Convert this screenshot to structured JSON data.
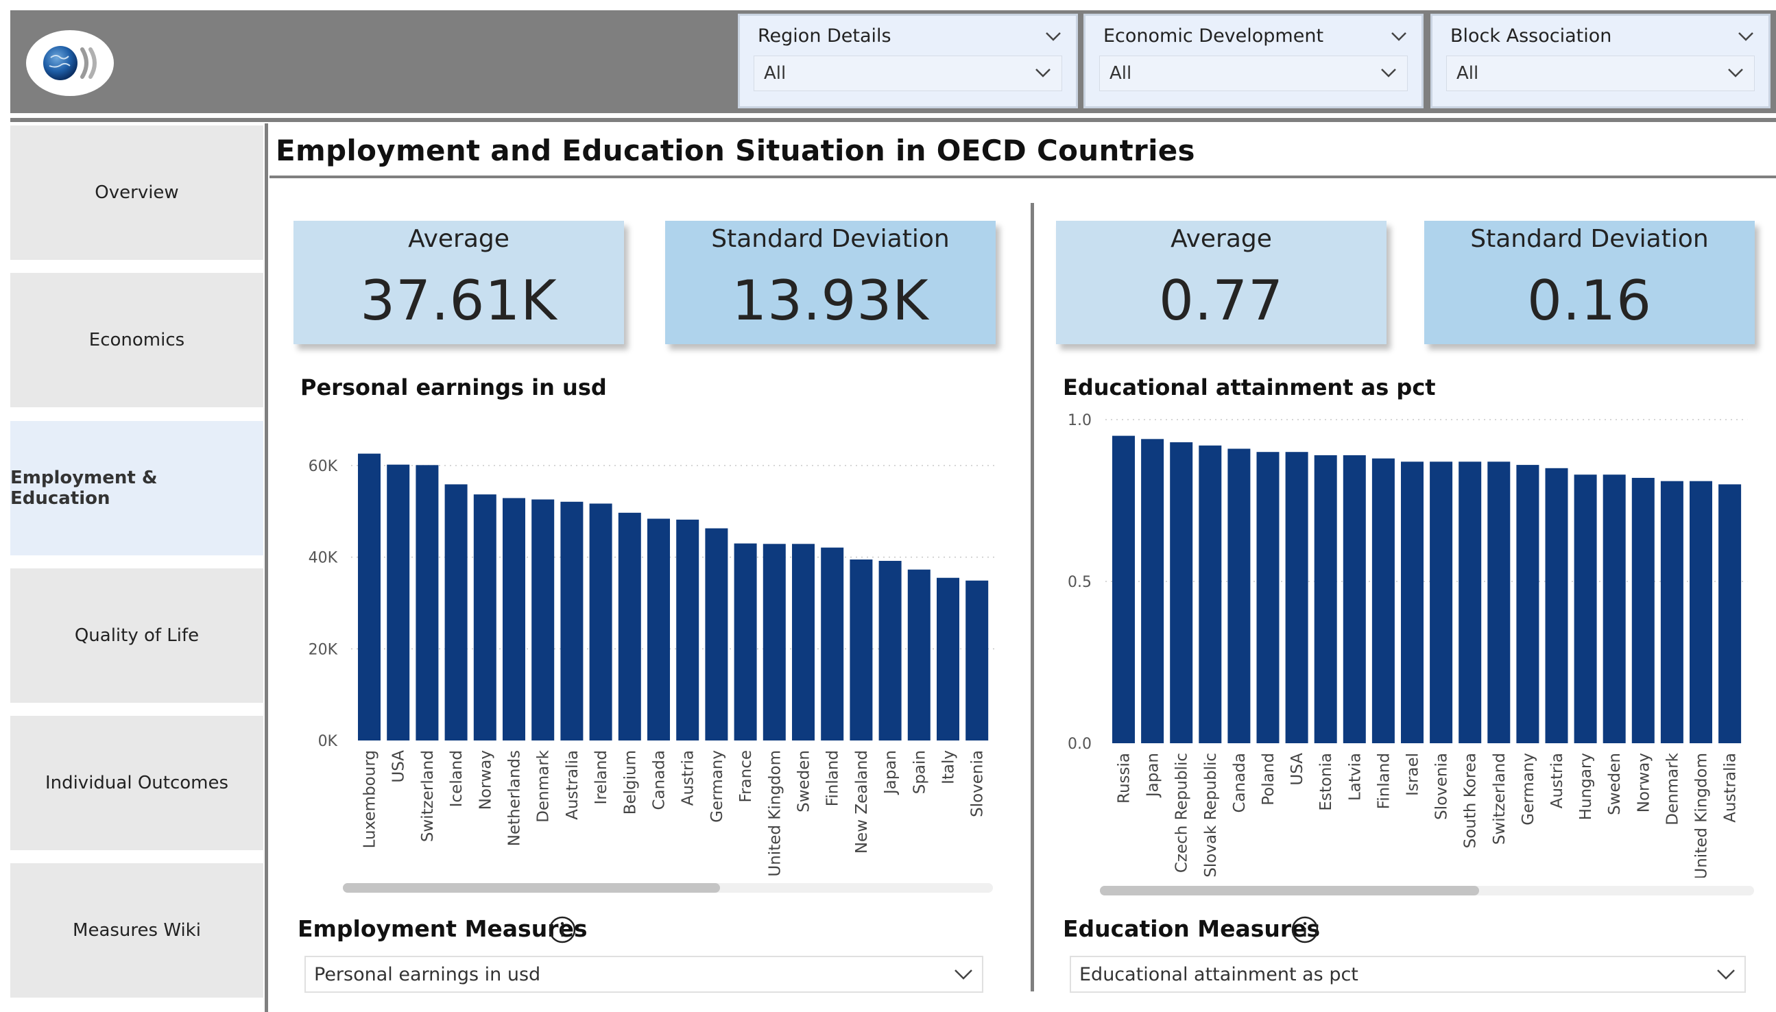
{
  "header": {
    "filters": [
      {
        "title": "Region Details",
        "value": "All"
      },
      {
        "title": "Economic Development",
        "value": "All"
      },
      {
        "title": "Block Association",
        "value": "All"
      }
    ]
  },
  "nav": {
    "items": [
      {
        "label": "Overview"
      },
      {
        "label": "Economics"
      },
      {
        "label": "Employment & Education"
      },
      {
        "label": "Quality of Life"
      },
      {
        "label": "Individual Outcomes"
      },
      {
        "label": "Measures Wiki"
      }
    ],
    "active_index": 2
  },
  "page": {
    "title": "Employment and Education Situation in OECD Countries"
  },
  "colors": {
    "bar": "#0d3a7e",
    "card_light": "#c8dff0",
    "card_dark": "#afd3ec",
    "divider": "#7f7f7f"
  },
  "employment": {
    "average_label": "Average",
    "average_value": "37.61K",
    "std_label": "Standard Deviation",
    "std_value": "13.93K",
    "measures_title": "Employment Measures",
    "measure_selected": "Personal earnings in usd",
    "scroll_fraction": 0.58
  },
  "education": {
    "average_label": "Average",
    "average_value": "0.77",
    "std_label": "Standard Deviation",
    "std_value": "0.16",
    "measures_title": "Education Measures",
    "measure_selected": "Educational attainment as pct",
    "scroll_fraction": 0.58
  },
  "chart_data": [
    {
      "type": "bar",
      "title": "Personal earnings in usd",
      "xlabel": "",
      "ylabel": "",
      "ylim": [
        0,
        65000
      ],
      "yticks": [
        0,
        20000,
        40000,
        60000
      ],
      "ytick_labels": [
        "0K",
        "20K",
        "40K",
        "60K"
      ],
      "grid": true,
      "categories": [
        "Luxembourg",
        "USA",
        "Switzerland",
        "Iceland",
        "Norway",
        "Netherlands",
        "Denmark",
        "Australia",
        "Ireland",
        "Belgium",
        "Canada",
        "Austria",
        "Germany",
        "France",
        "United Kingdom",
        "Sweden",
        "Finland",
        "New Zealand",
        "Japan",
        "Spain",
        "Italy",
        "Slovenia"
      ],
      "values": [
        62600,
        60200,
        60100,
        55900,
        53700,
        52900,
        52600,
        52100,
        51700,
        49700,
        48400,
        48200,
        46300,
        43000,
        42900,
        42900,
        42100,
        39500,
        39200,
        37300,
        35500,
        34900
      ]
    },
    {
      "type": "bar",
      "title": "Educational attainment as pct",
      "xlabel": "",
      "ylabel": "",
      "ylim": [
        0,
        1.0
      ],
      "yticks": [
        0.0,
        0.5,
        1.0
      ],
      "ytick_labels": [
        "0.0",
        "0.5",
        "1.0"
      ],
      "grid": true,
      "categories": [
        "Russia",
        "Japan",
        "Czech Republic",
        "Slovak Republic",
        "Canada",
        "Poland",
        "USA",
        "Estonia",
        "Latvia",
        "Finland",
        "Israel",
        "Slovenia",
        "South Korea",
        "Switzerland",
        "Germany",
        "Austria",
        "Hungary",
        "Sweden",
        "Norway",
        "Denmark",
        "United Kingdom",
        "Australia"
      ],
      "values": [
        0.95,
        0.94,
        0.93,
        0.92,
        0.91,
        0.9,
        0.9,
        0.89,
        0.89,
        0.88,
        0.87,
        0.87,
        0.87,
        0.87,
        0.86,
        0.85,
        0.83,
        0.83,
        0.82,
        0.81,
        0.81,
        0.8
      ]
    }
  ]
}
